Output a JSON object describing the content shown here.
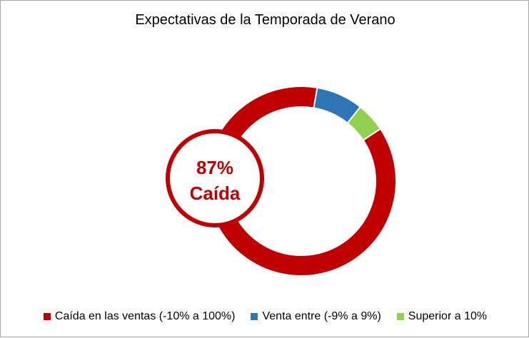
{
  "chart_data": {
    "type": "pie",
    "title": "Expectativas de la Temporada de Verano",
    "categories": [
      "Caída en las ventas (-10% a 100%)",
      "Venta entre (-9% a 9%)",
      "Superior a 10%"
    ],
    "values": [
      87,
      8,
      5
    ],
    "colors": [
      "#c00000",
      "#2e75b6",
      "#92d050"
    ],
    "legend_position": "bottom",
    "callout": {
      "value": "87%",
      "label": "Caída"
    }
  }
}
